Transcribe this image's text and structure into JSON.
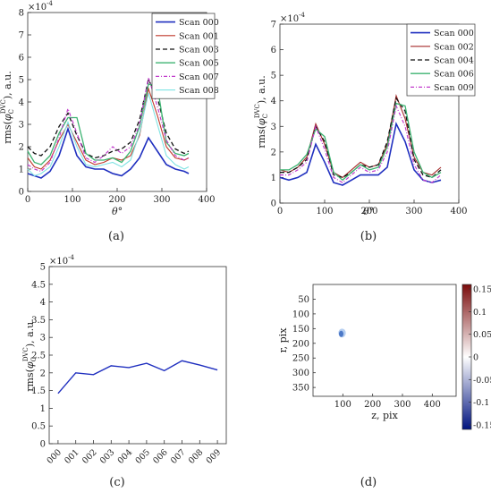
{
  "colors": {
    "scan000": "#1f2fbf",
    "scan001": "#c0392b",
    "scan002": "#a52a2a",
    "scan003": "#111111",
    "scan004": "#111111",
    "scan005": "#3cb371",
    "scan006": "#3cb371",
    "scan007": "#c23bcc",
    "scan008": "#7fe3e3",
    "scan009": "#c23bcc",
    "single": "#1f2fbf"
  },
  "chart_data": [
    {
      "type": "line",
      "panel_label": "(a)",
      "ylabel_main": "rms(",
      "ylabel_phi": "φ",
      "ylabel_sub": "C",
      "ylabel_sup": "DVC",
      "ylabel_tail": "), a.u.",
      "xlabel_main": "θ",
      "xlabel_tail": "°",
      "scale_prefix": "×10",
      "scale_exp": "-4",
      "xlim": [
        0,
        400
      ],
      "ylim": [
        0,
        8
      ],
      "xticks": [
        0,
        100,
        200,
        300,
        400
      ],
      "yticks": [
        0,
        1,
        2,
        3,
        4,
        5,
        6,
        7,
        8
      ],
      "legend": "top-right",
      "series": [
        {
          "name": "Scan 000",
          "color_key": "scan000",
          "dash": "",
          "width": 1.6,
          "x": [
            0,
            15,
            30,
            50,
            70,
            90,
            110,
            130,
            150,
            170,
            190,
            210,
            230,
            250,
            270,
            290,
            310,
            330,
            350,
            360
          ],
          "y": [
            0.8,
            0.7,
            0.6,
            0.9,
            1.6,
            2.8,
            1.6,
            1.1,
            1.0,
            1.0,
            0.8,
            0.7,
            1.0,
            1.5,
            2.4,
            1.8,
            1.2,
            1.0,
            0.9,
            0.8
          ]
        },
        {
          "name": "Scan 001",
          "color_key": "scan001",
          "dash": "",
          "width": 1.1,
          "x": [
            0,
            15,
            30,
            50,
            70,
            90,
            110,
            130,
            150,
            170,
            190,
            210,
            230,
            250,
            270,
            290,
            310,
            330,
            350,
            360
          ],
          "y": [
            1.5,
            1.1,
            1.0,
            1.4,
            2.3,
            3.0,
            2.2,
            1.4,
            1.2,
            1.3,
            1.5,
            1.4,
            1.6,
            2.5,
            4.6,
            3.4,
            2.0,
            1.5,
            1.4,
            1.5
          ]
        },
        {
          "name": "Scan 003",
          "color_key": "scan003",
          "dash": "5,3",
          "width": 1.3,
          "x": [
            0,
            15,
            30,
            50,
            70,
            90,
            110,
            130,
            150,
            170,
            190,
            210,
            230,
            250,
            270,
            290,
            310,
            330,
            350,
            360
          ],
          "y": [
            2.0,
            1.7,
            1.6,
            2.0,
            2.9,
            3.5,
            2.5,
            1.7,
            1.5,
            1.6,
            1.8,
            1.9,
            2.2,
            3.2,
            5.0,
            4.2,
            2.6,
            1.9,
            1.7,
            1.8
          ]
        },
        {
          "name": "Scan 005",
          "color_key": "scan005",
          "dash": "",
          "width": 1.3,
          "x": [
            0,
            15,
            30,
            50,
            70,
            90,
            110,
            130,
            150,
            170,
            190,
            210,
            230,
            250,
            270,
            290,
            310,
            330,
            350,
            360
          ],
          "y": [
            1.8,
            1.3,
            1.2,
            1.6,
            2.6,
            3.3,
            3.3,
            1.7,
            1.4,
            1.4,
            1.5,
            1.3,
            1.8,
            2.9,
            4.8,
            4.7,
            2.2,
            1.7,
            1.6,
            1.7
          ]
        },
        {
          "name": "Scan 007",
          "color_key": "scan007",
          "dash": "4,2,1,2",
          "width": 1.2,
          "x": [
            0,
            15,
            30,
            50,
            70,
            90,
            110,
            130,
            150,
            170,
            190,
            210,
            230,
            250,
            270,
            290,
            310,
            330,
            350,
            360
          ],
          "y": [
            1.2,
            1.0,
            0.9,
            1.3,
            2.4,
            3.7,
            2.6,
            1.5,
            1.3,
            1.6,
            2.0,
            1.7,
            2.0,
            3.0,
            5.1,
            3.8,
            2.3,
            1.6,
            1.4,
            1.5
          ]
        },
        {
          "name": "Scan 008",
          "color_key": "scan008",
          "dash": "",
          "width": 1.1,
          "x": [
            0,
            15,
            30,
            50,
            70,
            90,
            110,
            130,
            150,
            170,
            190,
            210,
            230,
            250,
            270,
            290,
            310,
            330,
            350,
            360
          ],
          "y": [
            1.0,
            0.7,
            0.8,
            1.1,
            2.0,
            3.1,
            2.0,
            1.2,
            1.1,
            1.2,
            1.3,
            1.1,
            1.4,
            2.6,
            4.4,
            3.0,
            1.6,
            1.2,
            1.0,
            1.1
          ]
        }
      ]
    },
    {
      "type": "line",
      "panel_label": "(b)",
      "ylabel_main": "rms(",
      "ylabel_phi": "φ",
      "ylabel_sub": "C",
      "ylabel_sup": "DVC",
      "ylabel_tail": "), a.u.",
      "xlabel_main": "θ",
      "xlabel_tail": "°",
      "scale_prefix": "×10",
      "scale_exp": "-4",
      "xlim": [
        0,
        400
      ],
      "ylim": [
        0,
        7
      ],
      "xticks": [
        0,
        100,
        200,
        300,
        400
      ],
      "yticks": [
        0,
        1,
        2,
        3,
        4,
        5,
        6,
        7
      ],
      "legend": "top-right",
      "series": [
        {
          "name": "Scan 000",
          "color_key": "scan000",
          "dash": "",
          "width": 1.6,
          "x": [
            0,
            20,
            40,
            60,
            80,
            100,
            120,
            140,
            160,
            180,
            200,
            220,
            240,
            260,
            280,
            300,
            320,
            340,
            360
          ],
          "y": [
            1.0,
            0.9,
            1.0,
            1.2,
            2.3,
            1.6,
            0.8,
            0.7,
            0.9,
            1.1,
            1.1,
            1.1,
            1.4,
            3.1,
            2.4,
            1.3,
            0.9,
            0.8,
            0.9
          ]
        },
        {
          "name": "Scan 002",
          "color_key": "scan002",
          "dash": "",
          "width": 1.1,
          "x": [
            0,
            20,
            40,
            60,
            80,
            100,
            120,
            140,
            160,
            180,
            200,
            220,
            240,
            260,
            280,
            300,
            320,
            340,
            360
          ],
          "y": [
            1.3,
            1.2,
            1.4,
            1.8,
            3.1,
            2.3,
            1.2,
            1.0,
            1.3,
            1.6,
            1.4,
            1.5,
            2.3,
            4.2,
            3.3,
            1.8,
            1.2,
            1.1,
            1.4
          ]
        },
        {
          "name": "Scan 004",
          "color_key": "scan004",
          "dash": "5,3",
          "width": 1.3,
          "x": [
            0,
            20,
            40,
            60,
            80,
            100,
            120,
            140,
            160,
            180,
            200,
            220,
            240,
            260,
            280,
            300,
            320,
            340,
            360
          ],
          "y": [
            1.2,
            1.2,
            1.4,
            1.7,
            3.0,
            2.4,
            1.1,
            1.0,
            1.2,
            1.5,
            1.4,
            1.5,
            2.4,
            4.1,
            3.6,
            1.7,
            1.1,
            1.0,
            1.3
          ]
        },
        {
          "name": "Scan 006",
          "color_key": "scan006",
          "dash": "",
          "width": 1.3,
          "x": [
            0,
            20,
            40,
            60,
            80,
            100,
            120,
            140,
            160,
            180,
            200,
            220,
            240,
            260,
            280,
            300,
            320,
            340,
            360
          ],
          "y": [
            1.3,
            1.3,
            1.5,
            1.9,
            2.9,
            2.6,
            1.2,
            0.9,
            1.2,
            1.5,
            1.3,
            1.4,
            2.2,
            3.9,
            3.8,
            2.0,
            1.2,
            1.0,
            1.2
          ]
        },
        {
          "name": "Scan 009",
          "color_key": "scan009",
          "dash": "4,2,1,2",
          "width": 1.2,
          "x": [
            0,
            20,
            40,
            60,
            80,
            100,
            120,
            140,
            160,
            180,
            200,
            220,
            240,
            260,
            280,
            300,
            320,
            340,
            360
          ],
          "y": [
            1.1,
            1.1,
            1.3,
            1.6,
            3.0,
            2.1,
            1.0,
            0.8,
            1.1,
            1.4,
            1.2,
            1.3,
            2.0,
            3.8,
            3.0,
            1.5,
            0.9,
            0.8,
            1.1
          ]
        }
      ]
    },
    {
      "type": "line",
      "panel_label": "(c)",
      "ylabel_main": "rms(",
      "ylabel_phi": "φ",
      "ylabel_sub": "C",
      "ylabel_sup": "DVC",
      "ylabel_tail": "), a.u.",
      "scale_prefix": "×10",
      "scale_exp": "-4",
      "ylim": [
        0,
        5
      ],
      "yticks": [
        0,
        0.5,
        1,
        1.5,
        2,
        2.5,
        3,
        3.5,
        4,
        4.5,
        5
      ],
      "categories": [
        "000",
        "001",
        "002",
        "003",
        "004",
        "005",
        "006",
        "007",
        "008",
        "009"
      ],
      "series": [
        {
          "color_key": "single",
          "values": [
            1.42,
            2.0,
            1.95,
            2.2,
            2.15,
            2.27,
            2.06,
            2.34,
            2.22,
            2.08
          ]
        }
      ]
    },
    {
      "type": "heatmap",
      "panel_label": "(d)",
      "xlabel": "z, pix",
      "ylabel": "r, pix",
      "xlim": [
        0,
        480
      ],
      "ylim": [
        0,
        380
      ],
      "xticks": [
        100,
        200,
        300,
        400
      ],
      "yticks": [
        50,
        100,
        150,
        200,
        250,
        300,
        350
      ],
      "colorbar_ticks": [
        -0.15,
        -0.1,
        -0.05,
        0,
        0.05,
        0.1,
        0.15
      ],
      "colorbar_range": [
        -0.16,
        0.16
      ],
      "colorbar_low": "#00137f",
      "colorbar_mid": "#ffffff",
      "colorbar_high": "#7a0c0c",
      "feature": {
        "z": [
          85,
          110
        ],
        "r": [
          150,
          180
        ],
        "value": -0.04
      }
    }
  ]
}
